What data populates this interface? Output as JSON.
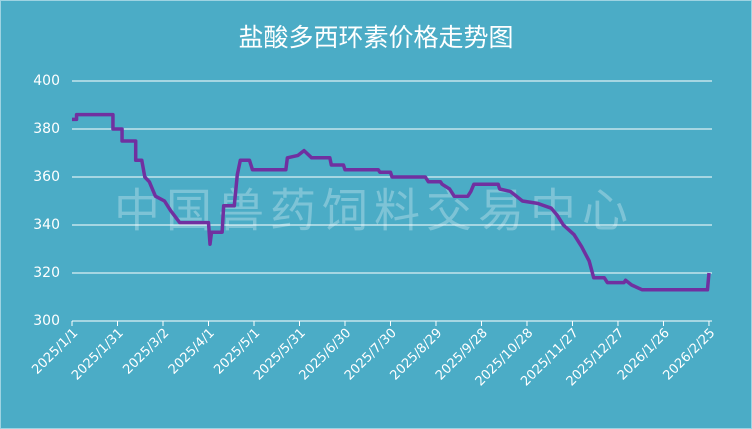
{
  "chart_data": {
    "type": "line",
    "title": "盐酸多西环素价格走势图",
    "annotations": [
      "中国兽药饲料交易中心"
    ],
    "x": [
      "2025/1/1",
      "2025/1/4",
      "2025/1/4",
      "2025/1/28",
      "2025/1/28",
      "2025/2/3",
      "2025/2/3",
      "2025/2/12",
      "2025/2/12",
      "2025/2/16",
      "2025/2/18",
      "2025/2/21",
      "2025/2/25",
      "2025/3/3",
      "2025/3/7",
      "2025/3/13",
      "2025/4/1",
      "2025/4/2",
      "2025/4/3",
      "2025/4/10",
      "2025/4/11",
      "2025/4/18",
      "2025/4/20",
      "2025/4/22",
      "2025/4/28",
      "2025/4/30",
      "2025/5/22",
      "2025/5/23",
      "2025/5/30",
      "2025/6/3",
      "2025/6/8",
      "2025/6/20",
      "2025/6/21",
      "2025/6/29",
      "2025/6/30",
      "2025/7/22",
      "2025/7/23",
      "2025/7/30",
      "2025/7/31",
      "2025/8/22",
      "2025/8/24",
      "2025/9/1",
      "2025/9/2",
      "2025/9/7",
      "2025/9/10",
      "2025/9/19",
      "2025/9/21",
      "2025/9/23",
      "2025/10/9",
      "2025/10/10",
      "2025/10/17",
      "2025/10/25",
      "2025/11/4",
      "2025/11/13",
      "2025/11/17",
      "2025/11/21",
      "2025/11/28",
      "2025/12/3",
      "2025/12/8",
      "2025/12/11",
      "2025/12/18",
      "2025/12/20",
      "2025/12/31",
      "2026/1/1",
      "2026/1/5",
      "2026/1/12",
      "2026/2/24",
      "2026/2/25"
    ],
    "series": [
      {
        "name": "盐酸多西环素",
        "color": "#7030a0",
        "values": [
          384,
          384,
          386,
          386,
          380,
          380,
          375,
          375,
          367,
          367,
          360,
          358,
          352,
          350,
          346,
          341,
          341,
          332,
          337,
          337,
          348,
          348,
          361,
          367,
          367,
          363,
          363,
          368,
          369,
          371,
          368,
          368,
          365,
          365,
          363,
          363,
          362,
          362,
          360,
          360,
          358,
          358,
          357,
          355,
          352,
          352,
          354,
          357,
          357,
          355,
          354,
          350,
          349,
          347,
          344,
          340,
          336,
          331,
          325,
          318,
          318,
          316,
          316,
          317,
          315,
          313,
          313,
          320
        ]
      }
    ],
    "xlim": [
      "2025/1/1",
      "2026/2/27"
    ],
    "xticks": [
      "2025/1/1",
      "2025/1/31",
      "2025/3/2",
      "2025/4/1",
      "2025/5/1",
      "2025/5/31",
      "2025/6/30",
      "2025/7/30",
      "2025/8/29",
      "2025/9/28",
      "2025/10/28",
      "2025/11/27",
      "2025/12/27",
      "2026/1/26",
      "2026/2/25"
    ],
    "ylim": [
      300,
      400
    ],
    "yticks": [
      300,
      320,
      340,
      360,
      380,
      400
    ],
    "grid": true
  }
}
